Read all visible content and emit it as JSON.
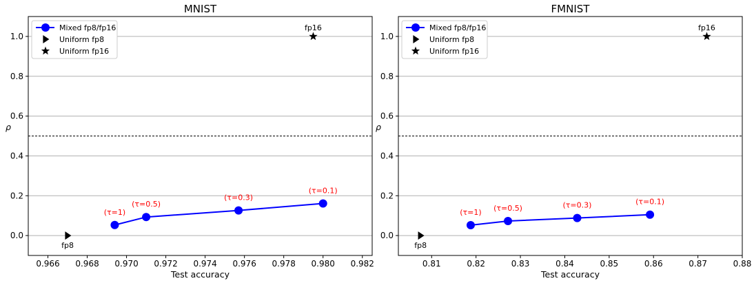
{
  "chart_data": [
    {
      "type": "line",
      "title": "MNIST",
      "xlabel": "Test accuracy",
      "ylabel": "ρ",
      "xlim": [
        0.965,
        0.9825
      ],
      "ylim": [
        -0.1,
        1.1
      ],
      "xticks": [
        "0.966",
        "0.968",
        "0.970",
        "0.972",
        "0.974",
        "0.976",
        "0.978",
        "0.980",
        "0.982"
      ],
      "xtick_values": [
        0.966,
        0.968,
        0.97,
        0.972,
        0.974,
        0.976,
        0.978,
        0.98,
        0.982
      ],
      "yticks": [
        "0.0",
        "0.2",
        "0.4",
        "0.6",
        "0.8",
        "1.0"
      ],
      "ytick_values": [
        0.0,
        0.2,
        0.4,
        0.6,
        0.8,
        1.0
      ],
      "grid": "horizontal",
      "threshold": 0.5,
      "legend_position": "top-left",
      "series": [
        {
          "name": "Mixed fp8/fp16",
          "marker": "circle",
          "color": "#0000ff",
          "x": [
            0.9694,
            0.971,
            0.9757,
            0.98
          ],
          "y": [
            0.053,
            0.093,
            0.126,
            0.161
          ],
          "annotations": [
            "(τ=1)",
            "(τ=0.5)",
            "(τ=0.3)",
            "(τ=0.1)"
          ]
        },
        {
          "name": "Uniform fp8",
          "marker": "triangle-right",
          "color": "#000000",
          "x": [
            0.967
          ],
          "y": [
            0.0
          ],
          "label": "fp8"
        },
        {
          "name": "Uniform fp16",
          "marker": "star",
          "color": "#000000",
          "x": [
            0.9795
          ],
          "y": [
            1.0
          ],
          "label": "fp16"
        }
      ],
      "annotation_color": "#ff0000"
    },
    {
      "type": "line",
      "title": "FMNIST",
      "xlabel": "Test accuracy",
      "ylabel": "ρ",
      "xlim": [
        0.8025,
        0.88
      ],
      "ylim": [
        -0.1,
        1.1
      ],
      "xticks": [
        "0.81",
        "0.82",
        "0.83",
        "0.84",
        "0.85",
        "0.86",
        "0.87",
        "0.88"
      ],
      "xtick_values": [
        0.81,
        0.82,
        0.83,
        0.84,
        0.85,
        0.86,
        0.87,
        0.88
      ],
      "yticks": [
        "0.0",
        "0.2",
        "0.4",
        "0.6",
        "0.8",
        "1.0"
      ],
      "ytick_values": [
        0.0,
        0.2,
        0.4,
        0.6,
        0.8,
        1.0
      ],
      "grid": "horizontal",
      "threshold": 0.5,
      "legend_position": "top-left",
      "series": [
        {
          "name": "Mixed fp8/fp16",
          "marker": "circle",
          "color": "#0000ff",
          "x": [
            0.8188,
            0.8272,
            0.8428,
            0.8592
          ],
          "y": [
            0.052,
            0.073,
            0.088,
            0.105
          ],
          "annotations": [
            "(τ=1)",
            "(τ=0.5)",
            "(τ=0.3)",
            "(τ=0.1)"
          ]
        },
        {
          "name": "Uniform fp8",
          "marker": "triangle-right",
          "color": "#000000",
          "x": [
            0.8075
          ],
          "y": [
            0.0
          ],
          "label": "fp8"
        },
        {
          "name": "Uniform fp16",
          "marker": "star",
          "color": "#000000",
          "x": [
            0.872
          ],
          "y": [
            1.0
          ],
          "label": "fp16"
        }
      ],
      "annotation_color": "#ff0000"
    }
  ]
}
